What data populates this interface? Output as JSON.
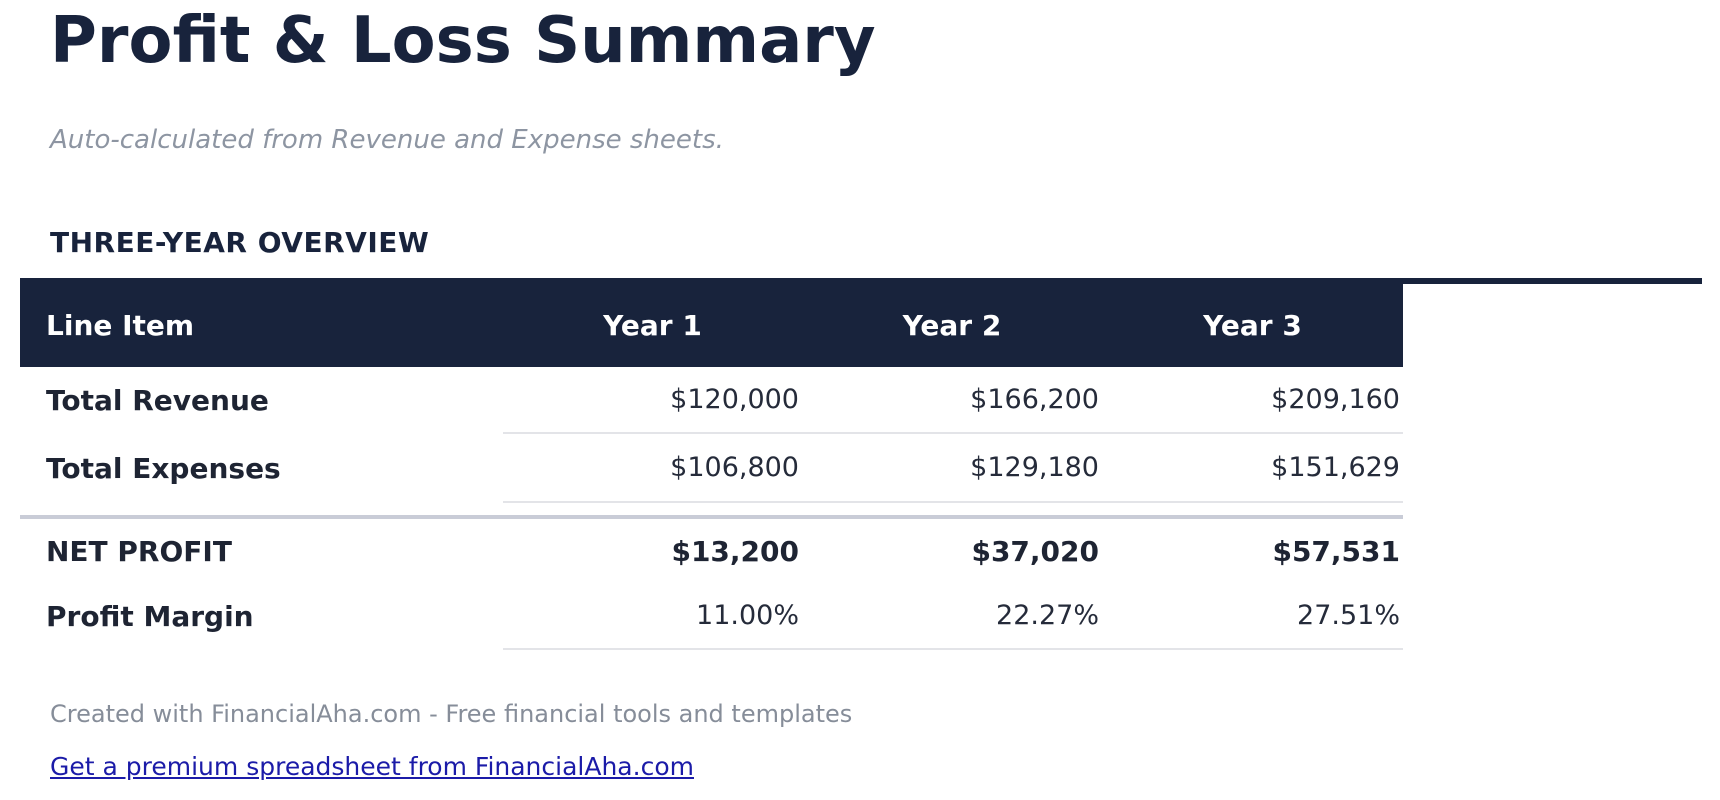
{
  "page": {
    "title": "Profit & Loss Summary",
    "subtitle": "Auto-calculated from Revenue and Expense sheets.",
    "section_heading": "THREE-YEAR OVERVIEW"
  },
  "table": {
    "columns": [
      "Line Item",
      "Year 1",
      "Year 2",
      "Year 3"
    ],
    "rows": [
      {
        "label": "Total Revenue",
        "values": [
          "$120,000",
          "$166,200",
          "$209,160"
        ]
      },
      {
        "label": "Total Expenses",
        "values": [
          "$106,800",
          "$129,180",
          "$151,629"
        ]
      },
      {
        "label": "NET PROFIT",
        "values": [
          "$13,200",
          "$37,020",
          "$57,531"
        ]
      },
      {
        "label": "Profit Margin",
        "values": [
          "11.00%",
          "22.27%",
          "27.51%"
        ]
      }
    ]
  },
  "footer": {
    "credit": "Created with FinancialAha.com - Free financial tools and templates",
    "link_label": "Get a premium spreadsheet from FinancialAha.com"
  },
  "colors": {
    "navy": "#18233C",
    "link": "#1B1BA8",
    "row_border": "#E3E4E8",
    "separator": "#C9CCD7",
    "subtitle_gray": "#8D95A2",
    "footer_gray": "#868D99",
    "header_text": "#FFFFFF",
    "label_text": "#1E2433",
    "value_text": "#252B3A"
  }
}
